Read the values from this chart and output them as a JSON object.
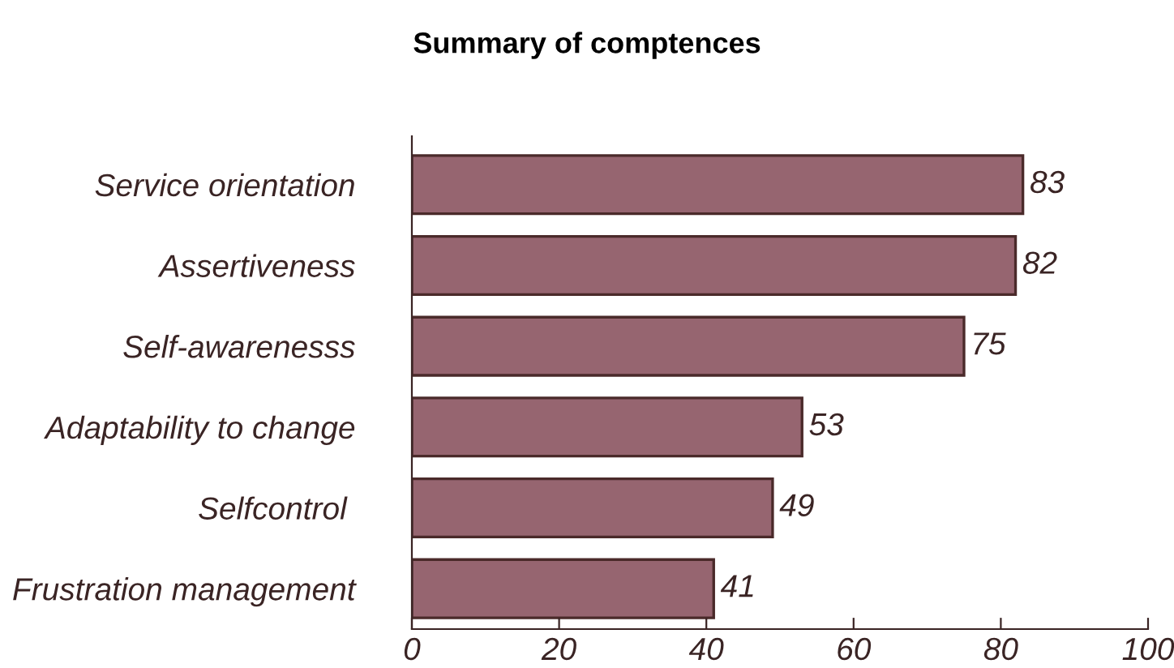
{
  "chart_data": {
    "type": "bar",
    "orientation": "horizontal",
    "title": "Summary of comptences",
    "categories": [
      "Service orientation",
      "Assertiveness",
      "Self-awarenesss",
      "Adaptability to change",
      "Selfcontrol ",
      "Frustration management"
    ],
    "values": [
      83,
      82,
      75,
      53,
      49,
      41
    ],
    "color": "#966570",
    "data_labels": true,
    "grid": false,
    "legend": false,
    "xlim": [
      0,
      100
    ],
    "xticks": [
      0,
      20,
      40,
      60,
      80,
      100
    ]
  }
}
